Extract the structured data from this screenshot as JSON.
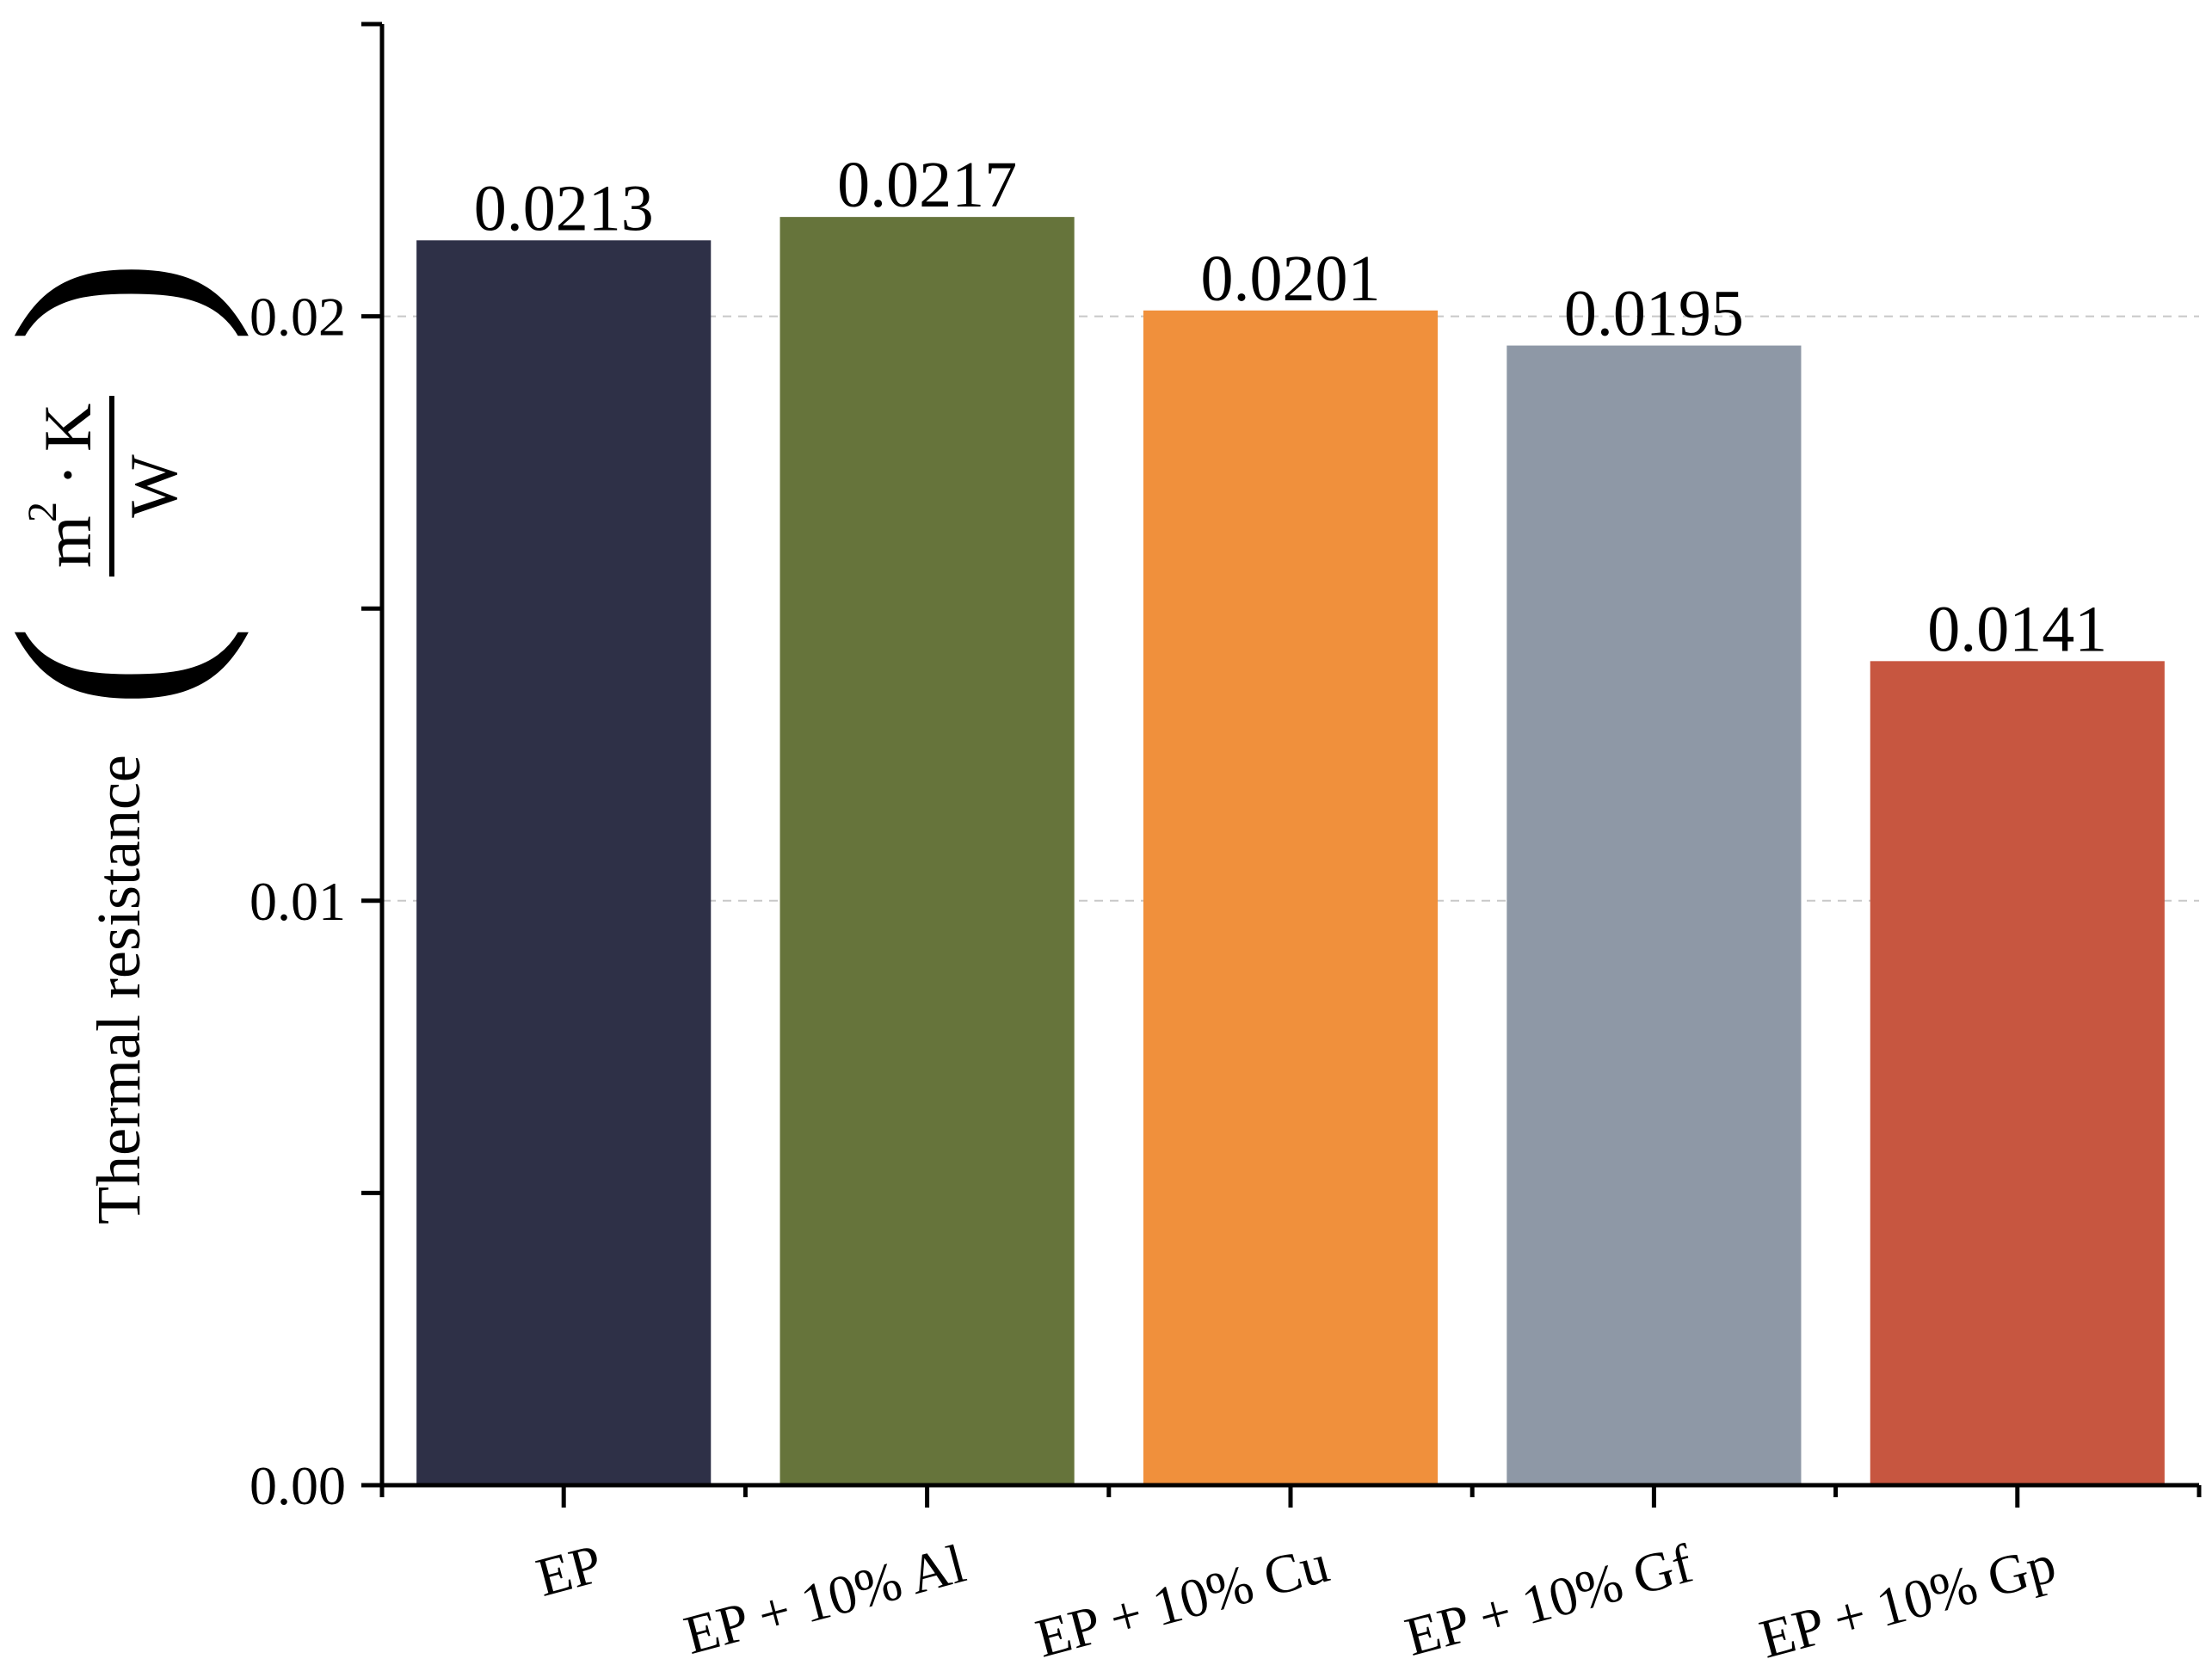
{
  "chart_data": {
    "type": "bar",
    "categories": [
      "EP",
      "EP + 10% Al",
      "EP + 10% Cu",
      "EP + 10% Gf",
      "EP + 10% Gp"
    ],
    "values": [
      0.0213,
      0.0217,
      0.0201,
      0.0195,
      0.0141
    ],
    "value_labels": [
      "0.0213",
      "0.0217",
      "0.0201",
      "0.0195",
      "0.0141"
    ],
    "colors": [
      "#2e3047",
      "#66743b",
      "#f0903c",
      "#8e98a6",
      "#c75640"
    ],
    "title": "",
    "xlabel": "",
    "ylabel": {
      "text": "Thermal resistance",
      "unit_numerator": "m",
      "unit_superscript": "2",
      "unit_dot": "·",
      "unit_k": "K",
      "unit_denominator": "W",
      "paren_open": "(",
      "paren_close": ")"
    },
    "ylim": [
      0,
      0.025
    ],
    "yticks": [
      {
        "value": 0,
        "label": "0.00"
      },
      {
        "value": 0.005,
        "label": ""
      },
      {
        "value": 0.01,
        "label": "0.01"
      },
      {
        "value": 0.015,
        "label": ""
      },
      {
        "value": 0.02,
        "label": "0.02"
      },
      {
        "value": 0.025,
        "label": ""
      }
    ],
    "gridlines_at": [
      0.01,
      0.02
    ],
    "grid": "dashed horizontal at labeled ticks",
    "legend": "none",
    "x_tick_label_rotation": "slanted"
  }
}
